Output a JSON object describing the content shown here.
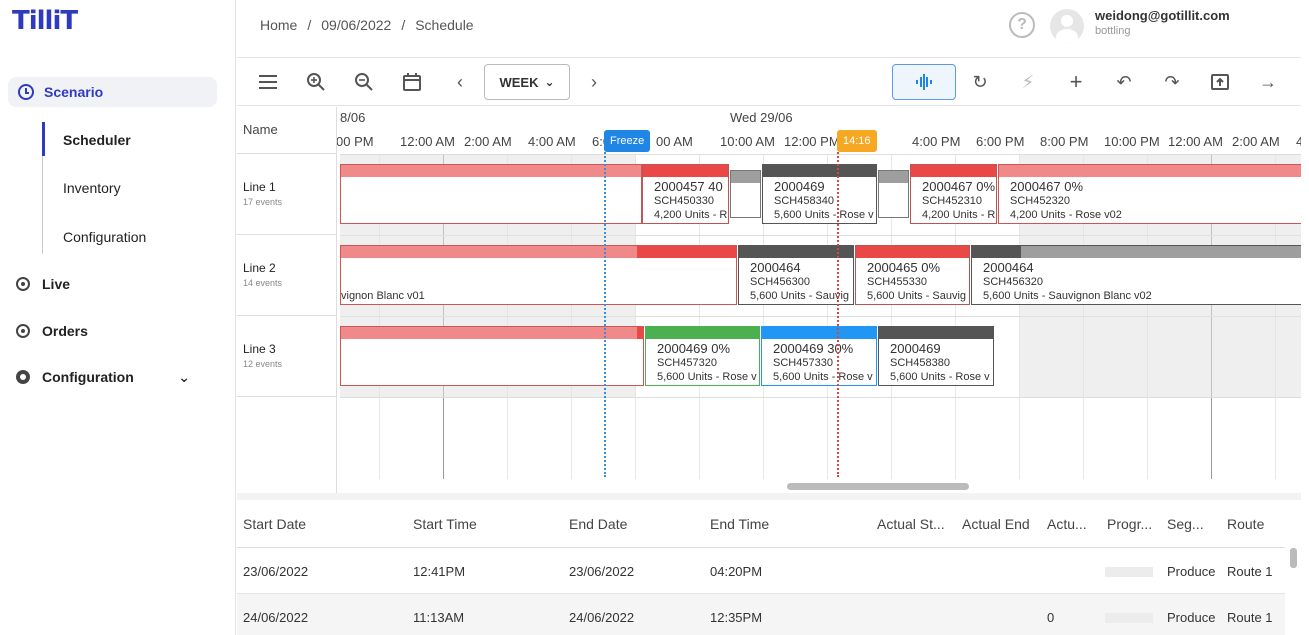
{
  "brand": {
    "logo_text": "TilliT"
  },
  "sidebar": {
    "scenario_label": "Scenario",
    "sub_items": [
      {
        "label": "Scheduler"
      },
      {
        "label": "Inventory"
      },
      {
        "label": "Configuration"
      }
    ],
    "items": [
      {
        "label": "Live"
      },
      {
        "label": "Orders"
      },
      {
        "label": "Configuration"
      }
    ]
  },
  "breadcrumb": {
    "home": "Home",
    "sep1": "/",
    "date": "09/06/2022",
    "sep2": "/",
    "page": "Schedule"
  },
  "user": {
    "email": "weidong@gotillit.com",
    "role": "bottling"
  },
  "toolbar": {
    "view_label": "WEEK"
  },
  "gantt": {
    "name_header": "Name",
    "dates": [
      "8/06",
      "Wed 29/06"
    ],
    "times": [
      "00 PM",
      "12:00 AM",
      "2:00 AM",
      "4:00 AM",
      "6:00",
      "00 AM",
      "10:00 AM",
      "12:00 PM",
      "",
      "4:00 PM",
      "6:00 PM",
      "8:00 PM",
      "10:00 PM",
      "12:00 AM",
      "2:00 AM",
      "4:0"
    ],
    "freeze_label": "Freeze",
    "now_label": "14:16",
    "lines": [
      {
        "name": "Line 1",
        "events": "17 events"
      },
      {
        "name": "Line 2",
        "events": "14 events"
      },
      {
        "name": "Line 3",
        "events": "12 events"
      }
    ],
    "bars": [
      {
        "row": 0,
        "color": "#f08a8a",
        "t1": "",
        "t2": "",
        "t3": ""
      },
      {
        "row": 0,
        "color": "#ea4747",
        "t1": "2000457 40",
        "t2": "SCH450330",
        "t3": "4,200 Units - R"
      },
      {
        "row": 0,
        "color": "#9e9e9e",
        "t1": "",
        "t2": "",
        "t3": ""
      },
      {
        "row": 0,
        "color": "#555555",
        "t1": "2000469",
        "t2": "SCH458340",
        "t3": "5,600 Units - Rose v"
      },
      {
        "row": 0,
        "color": "#9e9e9e",
        "t1": "",
        "t2": "",
        "t3": ""
      },
      {
        "row": 0,
        "color": "#ea4747",
        "t1": "2000467 0%",
        "t2": "SCH452310",
        "t3": "4,200 Units - R"
      },
      {
        "row": 0,
        "color": "#f08a8a",
        "t1": "2000467 0%",
        "t2": "SCH452320",
        "t3": "4,200 Units - Rose v02"
      },
      {
        "row": 1,
        "color": "#f08a8a",
        "t1": "",
        "t2": "",
        "t3": "vignon Blanc v01"
      },
      {
        "row": 1,
        "color": "#555555",
        "t1": "2000464",
        "t2": "SCH456300",
        "t3": "5,600 Units - Sauvig"
      },
      {
        "row": 1,
        "color": "#ea4747",
        "t1": "2000465 0%",
        "t2": "SCH455330",
        "t3": "5,600 Units - Sauvig"
      },
      {
        "row": 1,
        "color": "#555555",
        "t1": "2000464",
        "t2": "SCH456320",
        "t3": "5,600 Units - Sauvignon Blanc v02"
      },
      {
        "row": 2,
        "color": "#f08a8a",
        "t1": "",
        "t2": "",
        "t3": ""
      },
      {
        "row": 2,
        "color": "#4caf50",
        "t1": "2000469 0%",
        "t2": "SCH457320",
        "t3": "5,600 Units - Rose v"
      },
      {
        "row": 2,
        "color": "#2196f3",
        "t1": "2000469 30%",
        "t2": "SCH457330",
        "t3": "5,600 Units - Rose v"
      },
      {
        "row": 2,
        "color": "#555555",
        "t1": "2000469",
        "t2": "SCH458380",
        "t3": "5,600 Units - Rose v"
      }
    ]
  },
  "table": {
    "columns": [
      "Start Date",
      "Start Time",
      "End Date",
      "End Time",
      "Actual St...",
      "Actual End",
      "Actu...",
      "Progr...",
      "Seg...",
      "Route"
    ],
    "rows": [
      {
        "start_date": "23/06/2022",
        "start_time": "12:41PM",
        "end_date": "23/06/2022",
        "end_time": "04:20PM",
        "actual_start": "",
        "actual_end": "",
        "actual": "",
        "segment": "Produce",
        "route": "Route 1"
      },
      {
        "start_date": "24/06/2022",
        "start_time": "11:13AM",
        "end_date": "24/06/2022",
        "end_time": "12:35PM",
        "actual_start": "",
        "actual_end": "",
        "actual": "0",
        "segment": "Produce",
        "route": "Route 1"
      }
    ]
  }
}
